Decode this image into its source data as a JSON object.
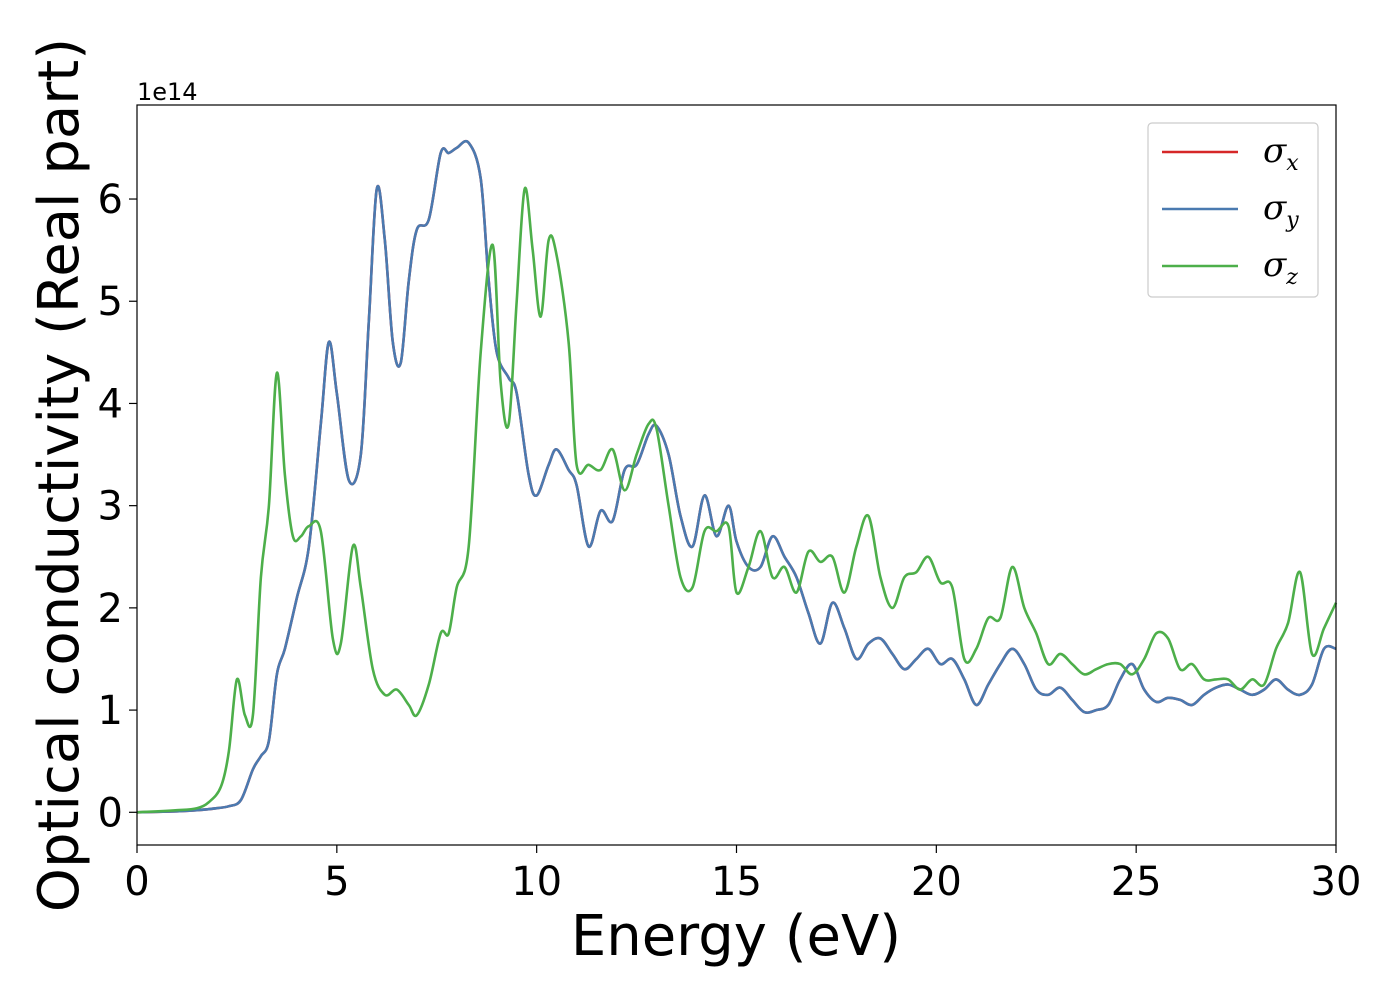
{
  "chart_data": {
    "type": "line",
    "xlabel": "Energy (eV)",
    "ylabel": "Optical conductivity (Real part)",
    "y_offset_label": "1e14",
    "xlim": [
      0,
      30
    ],
    "ylim": [
      -0.32,
      6.92
    ],
    "y_scale_factor": 100000000000000.0,
    "xticks": [
      0,
      5,
      10,
      15,
      20,
      25,
      30
    ],
    "yticks": [
      0,
      1,
      2,
      3,
      4,
      5,
      6
    ],
    "grid": false,
    "legend": {
      "placement": "top-right",
      "entries": [
        {
          "symbol": "σ",
          "sub": "x",
          "color": "#d62728"
        },
        {
          "symbol": "σ",
          "sub": "y",
          "color": "#4a7ab0"
        },
        {
          "symbol": "σ",
          "sub": "z",
          "color": "#4daf4a"
        }
      ]
    },
    "series": [
      {
        "name": "σx",
        "color": "#d62728",
        "x": [
          0,
          1,
          1.5,
          2,
          2.3,
          2.6,
          2.9,
          3.1,
          3.3,
          3.5,
          3.7,
          4.0,
          4.3,
          4.6,
          4.8,
          5.0,
          5.3,
          5.6,
          5.8,
          6.0,
          6.2,
          6.4,
          6.6,
          6.8,
          7.0,
          7.3,
          7.6,
          7.8,
          8.0,
          8.3,
          8.6,
          8.8,
          9.0,
          9.3,
          9.5,
          9.8,
          10.0,
          10.3,
          10.5,
          10.8,
          11.0,
          11.3,
          11.6,
          11.9,
          12.2,
          12.5,
          12.8,
          13.0,
          13.3,
          13.6,
          13.9,
          14.2,
          14.5,
          14.8,
          15.0,
          15.3,
          15.6,
          15.9,
          16.2,
          16.5,
          16.8,
          17.1,
          17.4,
          17.7,
          18.0,
          18.3,
          18.6,
          18.9,
          19.2,
          19.5,
          19.8,
          20.1,
          20.4,
          20.7,
          21.0,
          21.3,
          21.6,
          21.9,
          22.2,
          22.5,
          22.8,
          23.1,
          23.4,
          23.7,
          24.0,
          24.3,
          24.6,
          24.9,
          25.2,
          25.5,
          25.8,
          26.1,
          26.4,
          26.7,
          27.0,
          27.3,
          27.6,
          27.9,
          28.2,
          28.5,
          28.8,
          29.1,
          29.4,
          29.7,
          30
        ],
        "y": [
          0,
          0.01,
          0.02,
          0.04,
          0.06,
          0.12,
          0.42,
          0.55,
          0.7,
          1.35,
          1.6,
          2.1,
          2.6,
          3.8,
          4.6,
          4.1,
          3.25,
          3.5,
          4.8,
          6.1,
          5.6,
          4.6,
          4.4,
          5.2,
          5.7,
          5.8,
          6.45,
          6.45,
          6.5,
          6.55,
          6.2,
          5.2,
          4.5,
          4.25,
          4.1,
          3.3,
          3.1,
          3.4,
          3.55,
          3.35,
          3.2,
          2.6,
          2.95,
          2.85,
          3.35,
          3.4,
          3.7,
          3.78,
          3.5,
          2.9,
          2.6,
          3.1,
          2.7,
          3.0,
          2.65,
          2.4,
          2.4,
          2.7,
          2.5,
          2.3,
          1.95,
          1.65,
          2.05,
          1.8,
          1.5,
          1.65,
          1.7,
          1.55,
          1.4,
          1.5,
          1.6,
          1.45,
          1.5,
          1.3,
          1.05,
          1.25,
          1.45,
          1.6,
          1.45,
          1.2,
          1.15,
          1.22,
          1.1,
          0.98,
          1.0,
          1.05,
          1.3,
          1.45,
          1.2,
          1.08,
          1.12,
          1.1,
          1.05,
          1.15,
          1.22,
          1.25,
          1.2,
          1.15,
          1.2,
          1.3,
          1.2,
          1.15,
          1.25,
          1.6,
          1.6
        ]
      },
      {
        "name": "σy",
        "color": "#4a7ab0",
        "x": [
          0,
          1,
          1.5,
          2,
          2.3,
          2.6,
          2.9,
          3.1,
          3.3,
          3.5,
          3.7,
          4.0,
          4.3,
          4.6,
          4.8,
          5.0,
          5.3,
          5.6,
          5.8,
          6.0,
          6.2,
          6.4,
          6.6,
          6.8,
          7.0,
          7.3,
          7.6,
          7.8,
          8.0,
          8.3,
          8.6,
          8.8,
          9.0,
          9.3,
          9.5,
          9.8,
          10.0,
          10.3,
          10.5,
          10.8,
          11.0,
          11.3,
          11.6,
          11.9,
          12.2,
          12.5,
          12.8,
          13.0,
          13.3,
          13.6,
          13.9,
          14.2,
          14.5,
          14.8,
          15.0,
          15.3,
          15.6,
          15.9,
          16.2,
          16.5,
          16.8,
          17.1,
          17.4,
          17.7,
          18.0,
          18.3,
          18.6,
          18.9,
          19.2,
          19.5,
          19.8,
          20.1,
          20.4,
          20.7,
          21.0,
          21.3,
          21.6,
          21.9,
          22.2,
          22.5,
          22.8,
          23.1,
          23.4,
          23.7,
          24.0,
          24.3,
          24.6,
          24.9,
          25.2,
          25.5,
          25.8,
          26.1,
          26.4,
          26.7,
          27.0,
          27.3,
          27.6,
          27.9,
          28.2,
          28.5,
          28.8,
          29.1,
          29.4,
          29.7,
          30
        ],
        "y": [
          0,
          0.01,
          0.02,
          0.04,
          0.06,
          0.12,
          0.42,
          0.55,
          0.7,
          1.35,
          1.6,
          2.1,
          2.6,
          3.8,
          4.6,
          4.1,
          3.25,
          3.5,
          4.8,
          6.1,
          5.6,
          4.6,
          4.4,
          5.2,
          5.7,
          5.8,
          6.45,
          6.45,
          6.5,
          6.55,
          6.2,
          5.2,
          4.5,
          4.25,
          4.1,
          3.3,
          3.1,
          3.4,
          3.55,
          3.35,
          3.2,
          2.6,
          2.95,
          2.85,
          3.35,
          3.4,
          3.7,
          3.78,
          3.5,
          2.9,
          2.6,
          3.1,
          2.7,
          3.0,
          2.65,
          2.4,
          2.4,
          2.7,
          2.5,
          2.3,
          1.95,
          1.65,
          2.05,
          1.8,
          1.5,
          1.65,
          1.7,
          1.55,
          1.4,
          1.5,
          1.6,
          1.45,
          1.5,
          1.3,
          1.05,
          1.25,
          1.45,
          1.6,
          1.45,
          1.2,
          1.15,
          1.22,
          1.1,
          0.98,
          1.0,
          1.05,
          1.3,
          1.45,
          1.2,
          1.08,
          1.12,
          1.1,
          1.05,
          1.15,
          1.22,
          1.25,
          1.2,
          1.15,
          1.2,
          1.3,
          1.2,
          1.15,
          1.25,
          1.6,
          1.6
        ]
      },
      {
        "name": "σz",
        "color": "#4daf4a",
        "x": [
          0,
          1,
          1.5,
          1.8,
          2.1,
          2.3,
          2.5,
          2.7,
          2.9,
          3.1,
          3.3,
          3.5,
          3.7,
          3.9,
          4.1,
          4.3,
          4.6,
          4.9,
          5.1,
          5.4,
          5.6,
          5.9,
          6.2,
          6.5,
          6.8,
          7.0,
          7.3,
          7.6,
          7.8,
          8.0,
          8.3,
          8.6,
          8.9,
          9.1,
          9.3,
          9.5,
          9.7,
          9.9,
          10.1,
          10.3,
          10.5,
          10.8,
          11.0,
          11.3,
          11.6,
          11.9,
          12.2,
          12.5,
          12.8,
          13.0,
          13.3,
          13.6,
          13.9,
          14.2,
          14.5,
          14.8,
          15.0,
          15.3,
          15.6,
          15.9,
          16.2,
          16.5,
          16.8,
          17.1,
          17.4,
          17.7,
          18.0,
          18.3,
          18.6,
          18.9,
          19.2,
          19.5,
          19.8,
          20.1,
          20.4,
          20.7,
          21.0,
          21.3,
          21.6,
          21.9,
          22.2,
          22.5,
          22.8,
          23.1,
          23.4,
          23.7,
          24.0,
          24.3,
          24.6,
          24.9,
          25.2,
          25.5,
          25.8,
          26.1,
          26.4,
          26.7,
          27.0,
          27.3,
          27.6,
          27.9,
          28.2,
          28.5,
          28.8,
          29.1,
          29.4,
          29.7,
          30
        ],
        "y": [
          0,
          0.02,
          0.04,
          0.1,
          0.25,
          0.6,
          1.3,
          0.95,
          0.95,
          2.3,
          3.0,
          4.3,
          3.3,
          2.7,
          2.7,
          2.8,
          2.75,
          1.7,
          1.65,
          2.6,
          2.2,
          1.4,
          1.15,
          1.2,
          1.05,
          0.95,
          1.25,
          1.75,
          1.75,
          2.2,
          2.6,
          4.5,
          5.55,
          4.2,
          3.8,
          5.0,
          6.1,
          5.5,
          4.85,
          5.6,
          5.45,
          4.6,
          3.4,
          3.4,
          3.35,
          3.55,
          3.15,
          3.5,
          3.8,
          3.75,
          3.0,
          2.3,
          2.2,
          2.75,
          2.75,
          2.8,
          2.15,
          2.4,
          2.75,
          2.3,
          2.4,
          2.15,
          2.55,
          2.45,
          2.5,
          2.15,
          2.6,
          2.9,
          2.3,
          2.0,
          2.3,
          2.35,
          2.5,
          2.25,
          2.2,
          1.5,
          1.6,
          1.9,
          1.9,
          2.4,
          2.0,
          1.75,
          1.45,
          1.55,
          1.45,
          1.35,
          1.4,
          1.45,
          1.45,
          1.35,
          1.5,
          1.75,
          1.7,
          1.4,
          1.45,
          1.3,
          1.3,
          1.3,
          1.2,
          1.3,
          1.25,
          1.6,
          1.85,
          2.35,
          1.55,
          1.8,
          2.05
        ]
      }
    ]
  }
}
